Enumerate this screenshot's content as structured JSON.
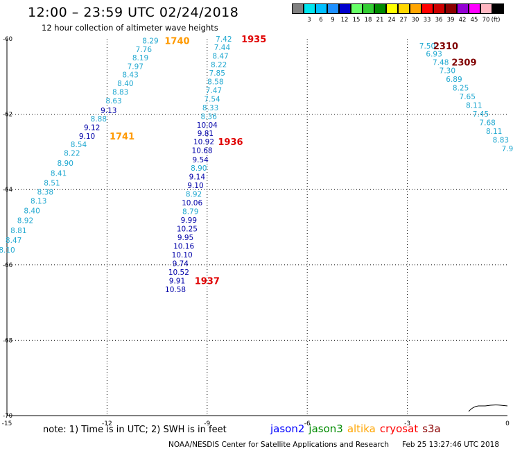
{
  "header": {
    "title": "12:00 – 23:59 UTC 02/24/2018",
    "subtitle": "12 hour collection of altimeter wave heights"
  },
  "legend": {
    "unit": "(ft)",
    "swatches": [
      {
        "color": "#808080",
        "label": ""
      },
      {
        "color": "#00e5ee",
        "label": "3"
      },
      {
        "color": "#00bfff",
        "label": "6"
      },
      {
        "color": "#1e90ff",
        "label": "9"
      },
      {
        "color": "#0000cd",
        "label": "12"
      },
      {
        "color": "#66ff66",
        "label": "15"
      },
      {
        "color": "#32cd32",
        "label": "18"
      },
      {
        "color": "#008b00",
        "label": "21"
      },
      {
        "color": "#ffff00",
        "label": "24"
      },
      {
        "color": "#ffd700",
        "label": "27"
      },
      {
        "color": "#ffa500",
        "label": "30"
      },
      {
        "color": "#ff0000",
        "label": "33"
      },
      {
        "color": "#cc0000",
        "label": "36"
      },
      {
        "color": "#8b0000",
        "label": "39"
      },
      {
        "color": "#9400d3",
        "label": "42"
      },
      {
        "color": "#ff00ff",
        "label": "45"
      },
      {
        "color": "#ffb6c1",
        "label": "70"
      },
      {
        "color": "#000000",
        "label": ""
      }
    ]
  },
  "footer": {
    "note": "note:  1) Time is in UTC;  2) SWH is in feet",
    "satellites": [
      {
        "name": "jason2",
        "color": "#0000ff"
      },
      {
        "name": "jason3",
        "color": "#008b00"
      },
      {
        "name": "altika",
        "color": "#ffa500"
      },
      {
        "name": "cryosat",
        "color": "#ff0000"
      },
      {
        "name": "s3a",
        "color": "#8b0000"
      }
    ],
    "credit": "NOAA/NESDIS Center for Satellite Applications and Research",
    "timestamp": "Feb 25 13:27:46 UTC 2018"
  },
  "chart_data": {
    "type": "scatter",
    "title": "12:00 – 23:59 UTC 02/24/2018",
    "subtitle": "12 hour collection of altimeter wave heights",
    "xlim": [
      -15,
      0
    ],
    "ylim": [
      -70,
      -60
    ],
    "xticks": [
      "-15",
      "-12",
      "-9",
      "-6",
      "-3",
      "0"
    ],
    "yticks": [
      "-60",
      "-62",
      "-64",
      "-66",
      "-68",
      "-70"
    ],
    "grid": "dotted",
    "colors": {
      "cyan": "#20a8d0",
      "navy": "#0000a8",
      "orange": "#ff9900",
      "red": "#e00000",
      "maroon": "#800000"
    },
    "tracks": [
      {
        "label": "1740",
        "label_color": "orange",
        "label_x": -9.9,
        "label_y": -60.05,
        "points": [
          {
            "x": -10.7,
            "y": -60.05,
            "v": "8.29",
            "c": "cyan"
          },
          {
            "x": -10.9,
            "y": -60.28,
            "v": "7.76",
            "c": "cyan"
          },
          {
            "x": -11.0,
            "y": -60.5,
            "v": "8.19",
            "c": "cyan"
          },
          {
            "x": -11.15,
            "y": -60.73,
            "v": "7.97",
            "c": "cyan"
          },
          {
            "x": -11.3,
            "y": -60.95,
            "v": "8.43",
            "c": "cyan"
          },
          {
            "x": -11.45,
            "y": -61.18,
            "v": "8.40",
            "c": "cyan"
          },
          {
            "x": -11.6,
            "y": -61.41,
            "v": "8.83",
            "c": "cyan"
          },
          {
            "x": -11.8,
            "y": -61.64,
            "v": "8.63",
            "c": "cyan"
          },
          {
            "x": -11.95,
            "y": -61.9,
            "v": "9.13",
            "c": "navy"
          },
          {
            "x": -12.25,
            "y": -62.12,
            "v": "8.88",
            "c": "cyan"
          },
          {
            "x": -12.45,
            "y": -62.35,
            "v": "9.12",
            "c": "navy"
          }
        ]
      },
      {
        "label": "1741",
        "label_color": "orange",
        "label_x": -11.55,
        "label_y": -62.58,
        "points": [
          {
            "x": -12.6,
            "y": -62.58,
            "v": "9.10",
            "c": "navy"
          },
          {
            "x": -12.85,
            "y": -62.8,
            "v": "8.54",
            "c": "cyan"
          },
          {
            "x": -13.05,
            "y": -63.03,
            "v": "8.22",
            "c": "cyan"
          },
          {
            "x": -13.25,
            "y": -63.3,
            "v": "8.90",
            "c": "cyan"
          },
          {
            "x": -13.45,
            "y": -63.56,
            "v": "8.41",
            "c": "cyan"
          },
          {
            "x": -13.65,
            "y": -63.82,
            "v": "8.51",
            "c": "cyan"
          },
          {
            "x": -13.85,
            "y": -64.06,
            "v": "8.38",
            "c": "cyan"
          },
          {
            "x": -14.05,
            "y": -64.3,
            "v": "8.13",
            "c": "cyan"
          },
          {
            "x": -14.25,
            "y": -64.56,
            "v": "8.40",
            "c": "cyan"
          },
          {
            "x": -14.45,
            "y": -64.82,
            "v": "8.92",
            "c": "cyan"
          },
          {
            "x": -14.65,
            "y": -65.08,
            "v": "8.81",
            "c": "cyan"
          },
          {
            "x": -14.8,
            "y": -65.34,
            "v": "8.47",
            "c": "cyan"
          },
          {
            "x": -15.0,
            "y": -65.6,
            "v": "8.10",
            "c": "cyan"
          }
        ]
      },
      {
        "label": "1935",
        "label_color": "red",
        "label_x": -7.6,
        "label_y": -60.0,
        "points": [
          {
            "x": -8.5,
            "y": -60.0,
            "v": "7.42",
            "c": "cyan"
          },
          {
            "x": -8.55,
            "y": -60.22,
            "v": "7.44",
            "c": "cyan"
          },
          {
            "x": -8.6,
            "y": -60.45,
            "v": "8.47",
            "c": "cyan"
          },
          {
            "x": -8.65,
            "y": -60.68,
            "v": "8.22",
            "c": "cyan"
          },
          {
            "x": -8.7,
            "y": -60.9,
            "v": "7.85",
            "c": "cyan"
          },
          {
            "x": -8.75,
            "y": -61.13,
            "v": "8.58",
            "c": "cyan"
          },
          {
            "x": -8.8,
            "y": -61.36,
            "v": "7.47",
            "c": "cyan"
          },
          {
            "x": -8.85,
            "y": -61.59,
            "v": "7.54",
            "c": "cyan"
          },
          {
            "x": -8.9,
            "y": -61.82,
            "v": "8.33",
            "c": "cyan"
          },
          {
            "x": -8.95,
            "y": -62.05,
            "v": "8.36",
            "c": "cyan"
          },
          {
            "x": -9.0,
            "y": -62.28,
            "v": "10.04",
            "c": "navy"
          },
          {
            "x": -9.05,
            "y": -62.5,
            "v": "9.81",
            "c": "navy"
          }
        ]
      },
      {
        "label": "1936",
        "label_color": "red",
        "label_x": -8.3,
        "label_y": -62.73,
        "points": [
          {
            "x": -9.1,
            "y": -62.73,
            "v": "10.92",
            "c": "navy"
          },
          {
            "x": -9.15,
            "y": -62.96,
            "v": "10.68",
            "c": "navy"
          },
          {
            "x": -9.2,
            "y": -63.2,
            "v": "9.54",
            "c": "navy"
          },
          {
            "x": -9.25,
            "y": -63.43,
            "v": "8.90",
            "c": "cyan"
          },
          {
            "x": -9.3,
            "y": -63.66,
            "v": "9.14",
            "c": "navy"
          },
          {
            "x": -9.35,
            "y": -63.89,
            "v": "9.10",
            "c": "navy"
          },
          {
            "x": -9.4,
            "y": -64.12,
            "v": "8.92",
            "c": "cyan"
          },
          {
            "x": -9.45,
            "y": -64.35,
            "v": "10.06",
            "c": "navy"
          },
          {
            "x": -9.5,
            "y": -64.58,
            "v": "8.79",
            "c": "cyan"
          },
          {
            "x": -9.55,
            "y": -64.81,
            "v": "9.99",
            "c": "navy"
          },
          {
            "x": -9.6,
            "y": -65.04,
            "v": "10.25",
            "c": "navy"
          },
          {
            "x": -9.65,
            "y": -65.27,
            "v": "9.95",
            "c": "navy"
          },
          {
            "x": -9.7,
            "y": -65.5,
            "v": "10.16",
            "c": "navy"
          },
          {
            "x": -9.75,
            "y": -65.73,
            "v": "10.10",
            "c": "navy"
          },
          {
            "x": -9.8,
            "y": -65.96,
            "v": "9.74",
            "c": "navy"
          },
          {
            "x": -9.85,
            "y": -66.19,
            "v": "10.52",
            "c": "navy"
          }
        ]
      },
      {
        "label": "1937",
        "label_color": "red",
        "label_x": -9.0,
        "label_y": -66.42,
        "points": [
          {
            "x": -9.9,
            "y": -66.42,
            "v": "9.91",
            "c": "navy"
          },
          {
            "x": -9.95,
            "y": -66.65,
            "v": "10.58",
            "c": "navy"
          }
        ]
      },
      {
        "label": "2310",
        "label_color": "maroon",
        "label_x": -1.85,
        "label_y": -60.18,
        "points": [
          {
            "x": -2.4,
            "y": -60.18,
            "v": "7.50",
            "c": "cyan"
          },
          {
            "x": -2.2,
            "y": -60.4,
            "v": "6.93",
            "c": "cyan"
          },
          {
            "x": -2.0,
            "y": -60.62,
            "v": "7.48",
            "c": "cyan"
          }
        ]
      },
      {
        "label": "2309",
        "label_color": "maroon",
        "label_x": -1.3,
        "label_y": -60.62,
        "points": [
          {
            "x": -1.8,
            "y": -60.84,
            "v": "7.30",
            "c": "cyan"
          },
          {
            "x": -1.6,
            "y": -61.07,
            "v": "6.89",
            "c": "cyan"
          },
          {
            "x": -1.4,
            "y": -61.3,
            "v": "8.25",
            "c": "cyan"
          },
          {
            "x": -1.2,
            "y": -61.53,
            "v": "7.65",
            "c": "cyan"
          },
          {
            "x": -1.0,
            "y": -61.76,
            "v": "8.11",
            "c": "cyan"
          },
          {
            "x": -0.8,
            "y": -61.99,
            "v": "7.45",
            "c": "cyan"
          },
          {
            "x": -0.6,
            "y": -62.22,
            "v": "7.68",
            "c": "cyan"
          },
          {
            "x": -0.4,
            "y": -62.45,
            "v": "8.11",
            "c": "cyan"
          },
          {
            "x": -0.2,
            "y": -62.68,
            "v": "8.83",
            "c": "cyan"
          },
          {
            "x": 0.0,
            "y": -62.91,
            "v": "7.9",
            "c": "cyan"
          }
        ]
      }
    ]
  }
}
